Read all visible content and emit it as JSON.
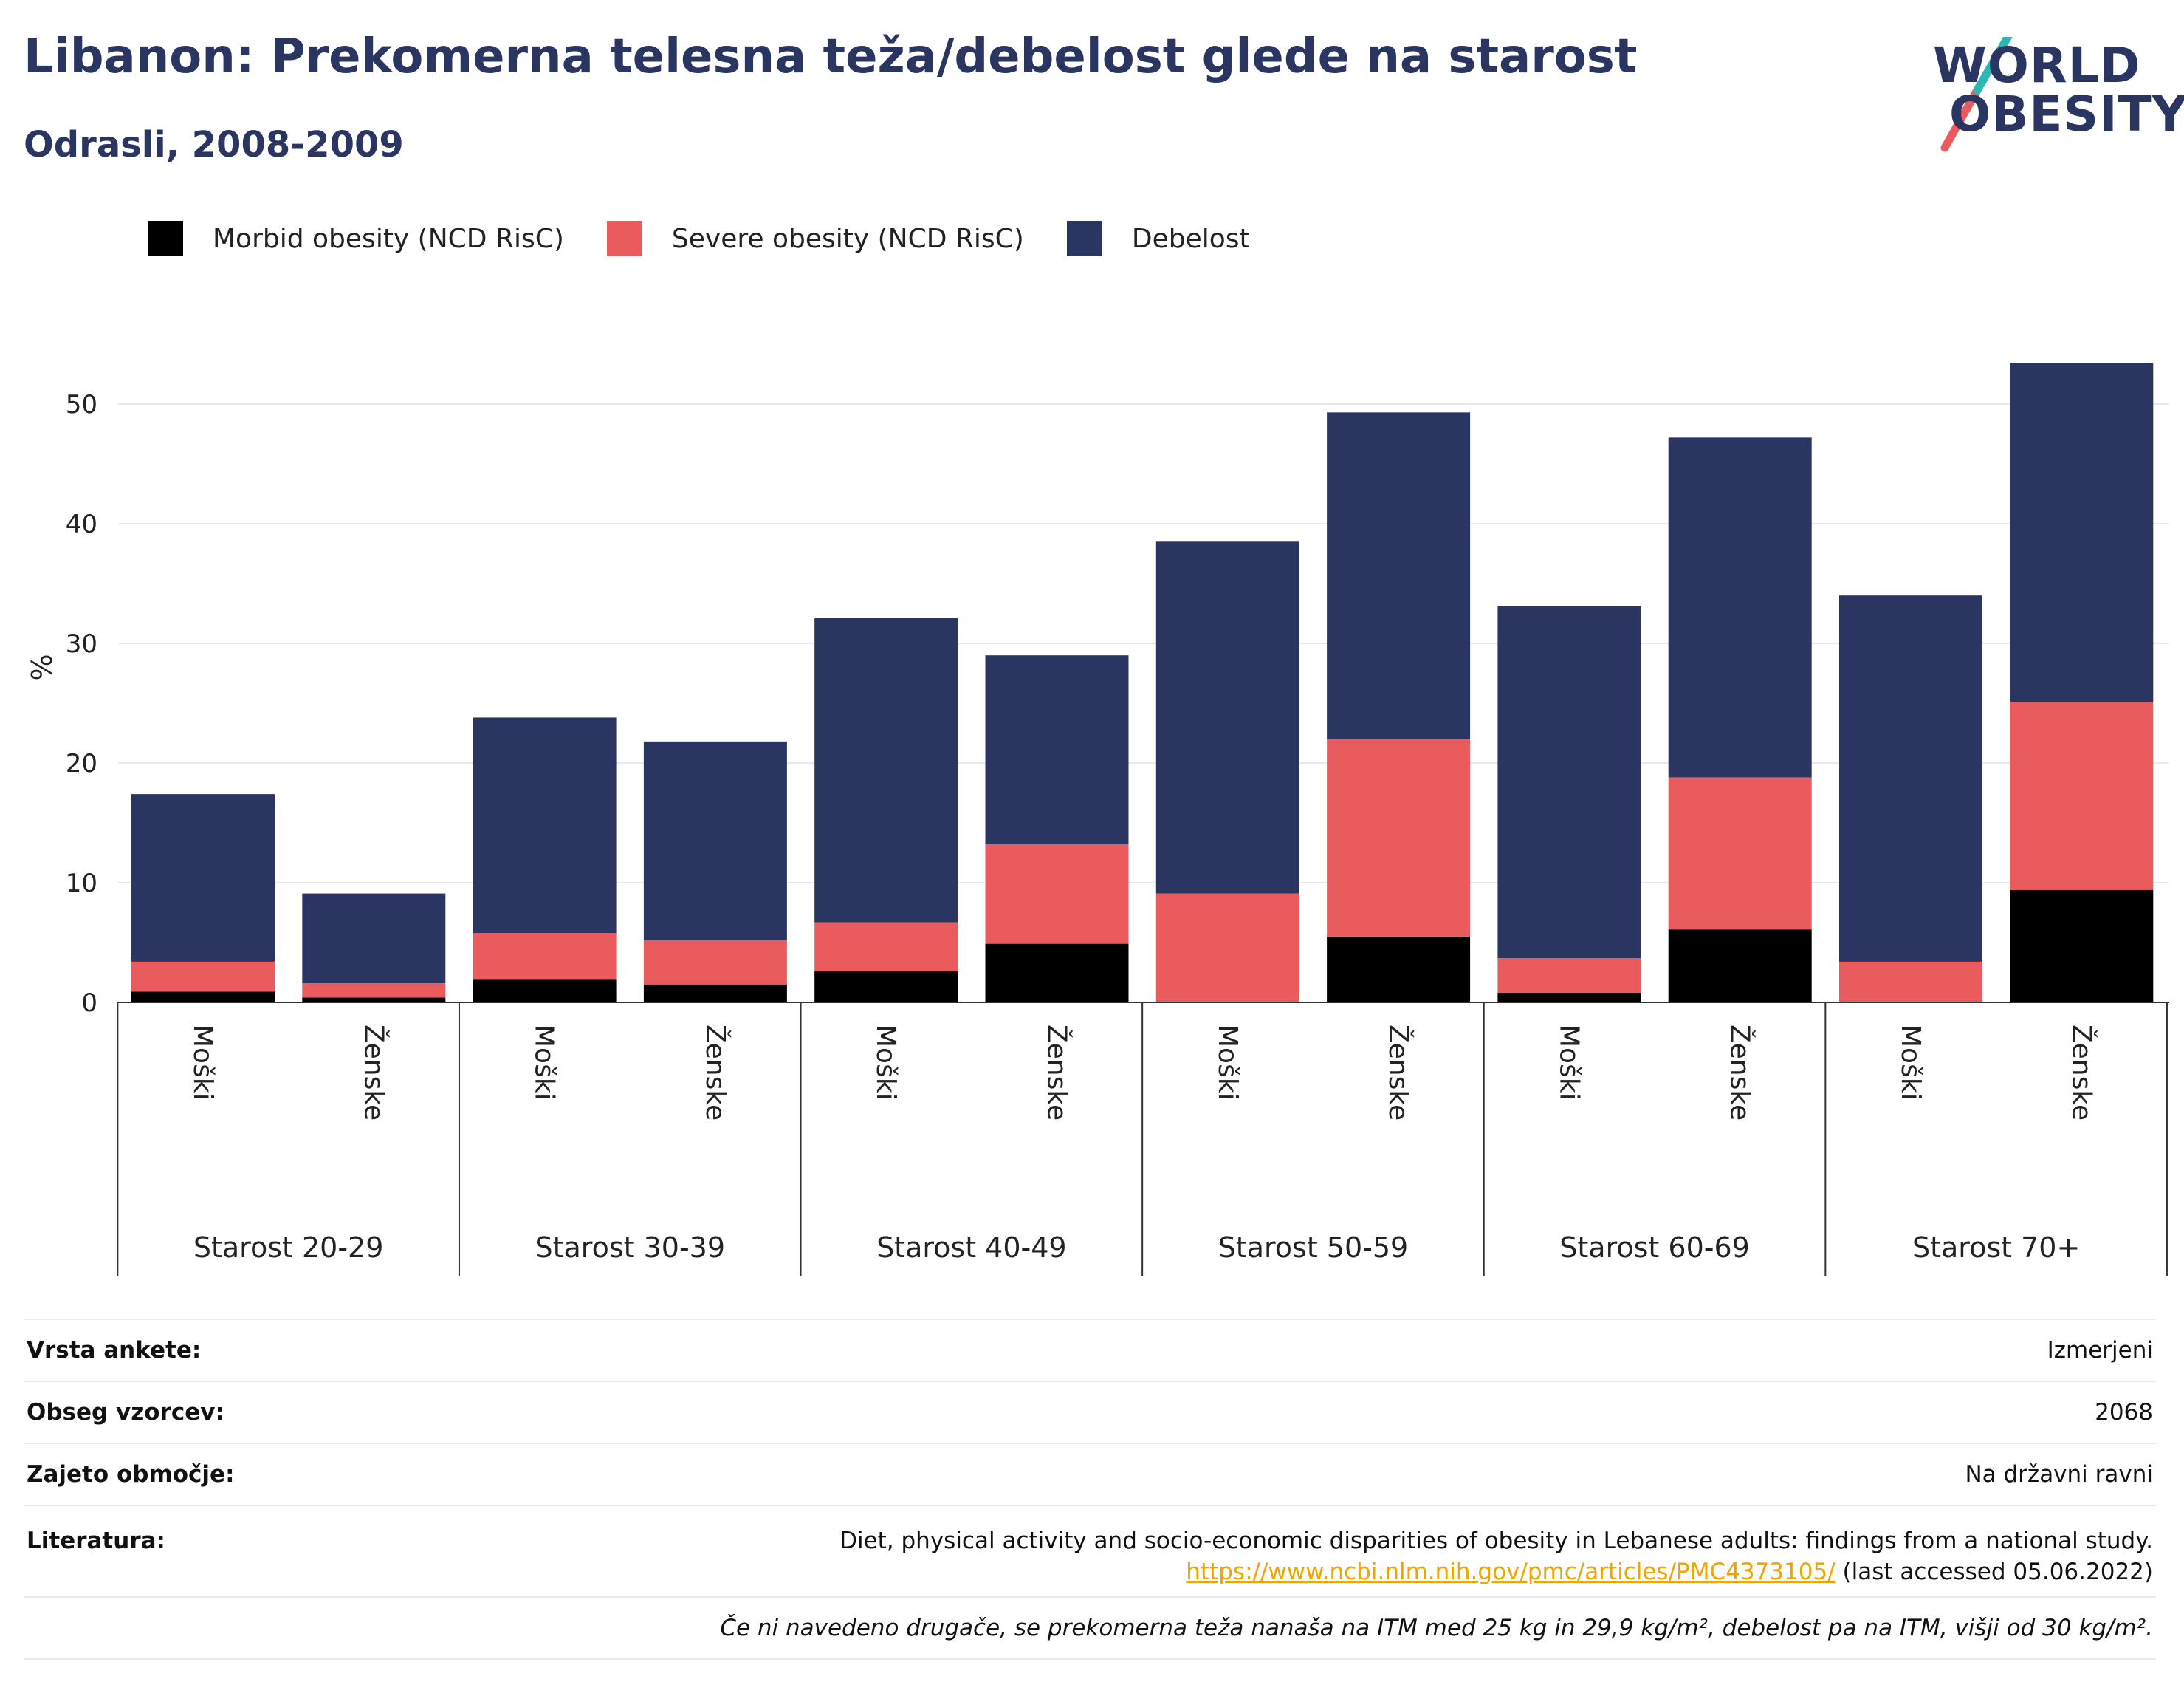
{
  "header": {
    "title": "Libanon: Prekomerna telesna teža/debelost glede na starost",
    "subtitle": "Odrasli, 2008-2009"
  },
  "logo": {
    "line1": "WORLD",
    "line2": "OBESITY"
  },
  "colors": {
    "morbid": "#000000",
    "severe": "#ea5b5d",
    "obesity": "#2a3561",
    "grid": "#e8eaf0",
    "axis": "#333333"
  },
  "chart_data": {
    "type": "bar",
    "stacked": true,
    "ylabel": "%",
    "ylim": [
      0,
      55
    ],
    "yticks": [
      0,
      10,
      20,
      30,
      40,
      50
    ],
    "grid": true,
    "legend_position": "top-left",
    "groups": [
      "Starost 20-29",
      "Starost 30-39",
      "Starost 40-49",
      "Starost 50-59",
      "Starost 60-69",
      "Starost 70+"
    ],
    "categories": [
      "Moški",
      "Ženske",
      "Moški",
      "Ženske",
      "Moški",
      "Ženske",
      "Moški",
      "Ženske",
      "Moški",
      "Ženske",
      "Moški",
      "Ženske"
    ],
    "series": [
      {
        "name": "Morbid obesity (NCD RisC)",
        "values": [
          0.9,
          0.4,
          1.9,
          1.5,
          2.6,
          4.9,
          0,
          5.5,
          0.8,
          6.1,
          0,
          9.4
        ]
      },
      {
        "name": "Severe obesity (NCD RisC)",
        "values": [
          2.5,
          1.2,
          3.9,
          3.7,
          4.1,
          8.3,
          9.1,
          16.5,
          2.9,
          12.7,
          3.4,
          15.7
        ]
      },
      {
        "name": "Debelost",
        "values": [
          14.0,
          7.5,
          18.0,
          16.6,
          25.4,
          15.8,
          29.4,
          27.3,
          29.4,
          28.4,
          30.6,
          28.3
        ]
      }
    ]
  },
  "info": {
    "rows": [
      {
        "key": "Vrsta ankete:",
        "value": "Izmerjeni"
      },
      {
        "key": "Obseg vzorcev:",
        "value": "2068"
      },
      {
        "key": "Zajeto območje:",
        "value": "Na državni ravni"
      }
    ],
    "literature": {
      "key": "Literatura:",
      "text": "Diet, physical activity and socio-economic disparities of obesity in Lebanese adults: findings from a national study.",
      "link": "https://www.ncbi.nlm.nih.gov/pmc/articles/PMC4373105/",
      "accessed": "(last accessed 05.06.2022)"
    },
    "footnote": "Če ni navedeno drugače, se prekomerna teža nanaša na ITM med 25 kg in 29,9 kg/m², debelost pa na ITM, višji od 30 kg/m²."
  }
}
